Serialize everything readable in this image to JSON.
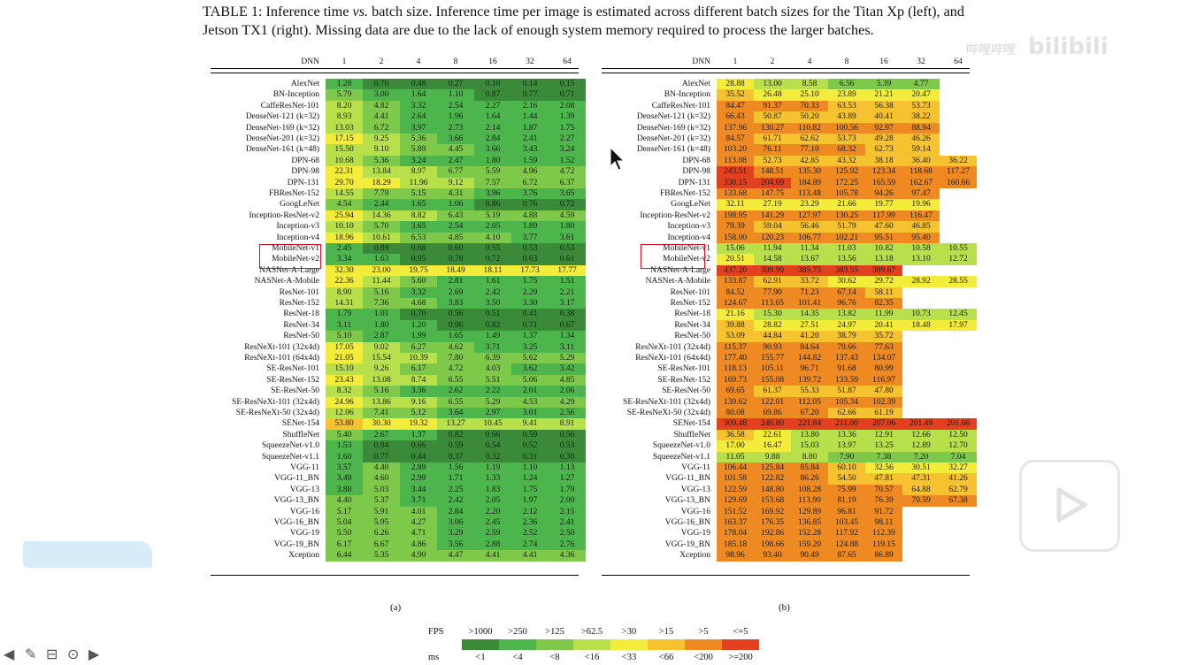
{
  "caption": {
    "prefix": "TABLE 1: Inference time ",
    "vs": "vs.",
    "rest": " batch size. Inference time per image is estimated across different batch sizes for the Titan Xp (left), and Jetson TX1 (right). Missing data are due to the lack of enough system memory required to process the larger batches."
  },
  "header": {
    "dnn": "DNN",
    "batches": [
      "1",
      "2",
      "4",
      "8",
      "16",
      "32",
      "64"
    ]
  },
  "titan": [
    [
      "AlexNet",
      [
        "1.28",
        "0.70",
        "0.48",
        "0.27",
        "0.18",
        "0.14",
        "0.15"
      ]
    ],
    [
      "BN-Inception",
      [
        "5.79",
        "3.00",
        "1.64",
        "1.10",
        "0.87",
        "0.77",
        "0.71"
      ]
    ],
    [
      "CaffeResNet-101",
      [
        "8.20",
        "4.82",
        "3.32",
        "2.54",
        "2.27",
        "2.16",
        "2.08"
      ]
    ],
    [
      "DenseNet-121 (k=32)",
      [
        "8.93",
        "4.41",
        "2.64",
        "1.96",
        "1.64",
        "1.44",
        "1.39"
      ]
    ],
    [
      "DenseNet-169 (k=32)",
      [
        "13.03",
        "6.72",
        "3.97",
        "2.73",
        "2.14",
        "1.87",
        "1.75"
      ]
    ],
    [
      "DenseNet-201 (k=32)",
      [
        "17.15",
        "9.25",
        "5.36",
        "3.66",
        "2.84",
        "2.41",
        "2.27"
      ]
    ],
    [
      "DenseNet-161 (k=48)",
      [
        "15.50",
        "9.10",
        "5.89",
        "4.45",
        "3.66",
        "3.43",
        "3.24"
      ]
    ],
    [
      "DPN-68",
      [
        "10.68",
        "5.36",
        "3.24",
        "2.47",
        "1.80",
        "1.59",
        "1.52"
      ]
    ],
    [
      "DPN-98",
      [
        "22.31",
        "13.84",
        "8.97",
        "6.77",
        "5.59",
        "4.96",
        "4.72"
      ]
    ],
    [
      "DPN-131",
      [
        "29.70",
        "18.29",
        "11.96",
        "9.12",
        "7.57",
        "6.72",
        "6.37"
      ]
    ],
    [
      "FBResNet-152",
      [
        "14.55",
        "7.79",
        "5.15",
        "4.31",
        "3.96",
        "3.76",
        "3.65"
      ]
    ],
    [
      "GoogLeNet",
      [
        "4.54",
        "2.44",
        "1.65",
        "1.06",
        "0.86",
        "0.76",
        "0.72"
      ]
    ],
    [
      "Inception-ResNet-v2",
      [
        "25.94",
        "14.36",
        "8.82",
        "6.43",
        "5.19",
        "4.88",
        "4.59"
      ]
    ],
    [
      "Inception-v3",
      [
        "10.10",
        "5.70",
        "3.65",
        "2.54",
        "2.05",
        "1.89",
        "1.80"
      ]
    ],
    [
      "Inception-v4",
      [
        "18.96",
        "10.61",
        "6.53",
        "4.85",
        "4.10",
        "3.77",
        "3.61"
      ]
    ],
    [
      "MobileNet-v1",
      [
        "2.45",
        "0.89",
        "0.68",
        "0.60",
        "0.55",
        "0.53",
        "0.53"
      ]
    ],
    [
      "MobileNet-v2",
      [
        "3.34",
        "1.63",
        "0.95",
        "0.78",
        "0.72",
        "0.63",
        "0.61"
      ]
    ],
    [
      "NASNet-A-Large",
      [
        "32.30",
        "23.00",
        "19.75",
        "18.49",
        "18.11",
        "17.73",
        "17.77"
      ]
    ],
    [
      "NASNet-A-Mobile",
      [
        "22.36",
        "11.44",
        "5.60",
        "2.81",
        "1.61",
        "1.75",
        "1.51"
      ]
    ],
    [
      "ResNet-101",
      [
        "8.90",
        "5.16",
        "3.32",
        "2.69",
        "2.42",
        "2.29",
        "2.21"
      ]
    ],
    [
      "ResNet-152",
      [
        "14.31",
        "7.36",
        "4.68",
        "3.83",
        "3.50",
        "3.30",
        "3.17"
      ]
    ],
    [
      "ResNet-18",
      [
        "1.79",
        "1.01",
        "0.70",
        "0.56",
        "0.51",
        "0.41",
        "0.38"
      ]
    ],
    [
      "ResNet-34",
      [
        "3.11",
        "1.80",
        "1.20",
        "0.96",
        "0.82",
        "0.71",
        "0.67"
      ]
    ],
    [
      "ResNet-50",
      [
        "5.10",
        "2.87",
        "1.99",
        "1.65",
        "1.49",
        "1.37",
        "1.34"
      ]
    ],
    [
      "ResNeXt-101 (32x4d)",
      [
        "17.05",
        "9.02",
        "6.27",
        "4.62",
        "3.71",
        "3.25",
        "3.11"
      ]
    ],
    [
      "ResNeXt-101 (64x4d)",
      [
        "21.05",
        "15.54",
        "10.39",
        "7.80",
        "6.39",
        "5.62",
        "5.29"
      ]
    ],
    [
      "SE-ResNet-101",
      [
        "15.10",
        "9.26",
        "6.17",
        "4.72",
        "4.03",
        "3.62",
        "3.42"
      ]
    ],
    [
      "SE-ResNet-152",
      [
        "23.43",
        "13.08",
        "8.74",
        "6.55",
        "5.51",
        "5.06",
        "4.85"
      ]
    ],
    [
      "SE-ResNet-50",
      [
        "8.32",
        "5.16",
        "3.36",
        "2.62",
        "2.22",
        "2.01",
        "2.06"
      ]
    ],
    [
      "SE-ResNeXt-101 (32x4d)",
      [
        "24.96",
        "13.86",
        "9.16",
        "6.55",
        "5.29",
        "4.53",
        "4.29"
      ]
    ],
    [
      "SE-ResNeXt-50 (32x4d)",
      [
        "12.06",
        "7.41",
        "5.12",
        "3.64",
        "2.97",
        "3.01",
        "2.56"
      ]
    ],
    [
      "SENet-154",
      [
        "53.80",
        "30.30",
        "19.32",
        "13.27",
        "10.45",
        "9.41",
        "8.91"
      ]
    ],
    [
      "ShuffleNet",
      [
        "5.40",
        "2.67",
        "1.37",
        "0.82",
        "0.66",
        "0.59",
        "0.56"
      ]
    ],
    [
      "SqueezeNet-v1.0",
      [
        "1.53",
        "0.84",
        "0.66",
        "0.59",
        "0.54",
        "0.52",
        "0.53"
      ]
    ],
    [
      "SqueezeNet-v1.1",
      [
        "1.60",
        "0.77",
        "0.44",
        "0.37",
        "0.32",
        "0.31",
        "0.30"
      ]
    ],
    [
      "VGG-11",
      [
        "3.57",
        "4.40",
        "2.89",
        "1.56",
        "1.19",
        "1.10",
        "1.13"
      ]
    ],
    [
      "VGG-11_BN",
      [
        "3.49",
        "4.60",
        "2.99",
        "1.71",
        "1.33",
        "1.24",
        "1.27"
      ]
    ],
    [
      "VGG-13",
      [
        "3.88",
        "5.03",
        "3.44",
        "2.25",
        "1.83",
        "1.75",
        "1.79"
      ]
    ],
    [
      "VGG-13_BN",
      [
        "4.40",
        "5.37",
        "3.71",
        "2.42",
        "2.05",
        "1.97",
        "2.00"
      ]
    ],
    [
      "VGG-16",
      [
        "5.17",
        "5.91",
        "4.01",
        "2.84",
        "2.20",
        "2.12",
        "2.15"
      ]
    ],
    [
      "VGG-16_BN",
      [
        "5.04",
        "5.95",
        "4.27",
        "3.06",
        "2.45",
        "2.36",
        "2.41"
      ]
    ],
    [
      "VGG-19",
      [
        "5.50",
        "6.26",
        "4.71",
        "3.29",
        "2.59",
        "2.52",
        "2.50"
      ]
    ],
    [
      "VGG-19_BN",
      [
        "6.17",
        "6.67",
        "4.86",
        "3.56",
        "2.88",
        "2.74",
        "2.76"
      ]
    ],
    [
      "Xception",
      [
        "6.44",
        "5.35",
        "4.90",
        "4.47",
        "4.41",
        "4.41",
        "4.36"
      ]
    ]
  ],
  "tx1": [
    [
      "AlexNet",
      [
        "28.88",
        "13.00",
        "8.58",
        "6.56",
        "5.39",
        "4.77",
        ""
      ]
    ],
    [
      "BN-Inception",
      [
        "35.52",
        "26.48",
        "25.10",
        "23.89",
        "21.21",
        "20.47",
        ""
      ]
    ],
    [
      "CaffeResNet-101",
      [
        "84.47",
        "91.37",
        "70.33",
        "63.53",
        "56.38",
        "53.73",
        ""
      ]
    ],
    [
      "DenseNet-121 (k=32)",
      [
        "66.43",
        "50.87",
        "50.20",
        "43.89",
        "40.41",
        "38.22",
        ""
      ]
    ],
    [
      "DenseNet-169 (k=32)",
      [
        "137.96",
        "130.27",
        "110.82",
        "100.56",
        "92.97",
        "88.94",
        ""
      ]
    ],
    [
      "DenseNet-201 (k=32)",
      [
        "84.57",
        "61.71",
        "62.62",
        "53.73",
        "49.28",
        "46.26",
        ""
      ]
    ],
    [
      "DenseNet-161 (k=48)",
      [
        "103.20",
        "76.11",
        "77.10",
        "68.32",
        "62.73",
        "59.14",
        ""
      ]
    ],
    [
      "DPN-68",
      [
        "113.08",
        "52.73",
        "42.85",
        "43.32",
        "38.18",
        "36.40",
        "36.22"
      ]
    ],
    [
      "DPN-98",
      [
        "243.51",
        "148.51",
        "135.30",
        "125.92",
        "123.34",
        "118.68",
        "117.27"
      ]
    ],
    [
      "DPN-131",
      [
        "330.15",
        "204.69",
        "184.89",
        "172.25",
        "165.59",
        "162.67",
        "160.66"
      ]
    ],
    [
      "FBResNet-152",
      [
        "133.68",
        "147.75",
        "113.48",
        "105.78",
        "94.26",
        "97.47",
        ""
      ]
    ],
    [
      "GoogLeNet",
      [
        "32.11",
        "27.19",
        "23.29",
        "21.66",
        "19.77",
        "19.96",
        ""
      ]
    ],
    [
      "Inception-ResNet-v2",
      [
        "198.95",
        "141.29",
        "127.97",
        "130.25",
        "117.99",
        "116.47",
        ""
      ]
    ],
    [
      "Inception-v3",
      [
        "79.39",
        "59.04",
        "56.46",
        "51.79",
        "47.60",
        "46.85",
        ""
      ]
    ],
    [
      "Inception-v4",
      [
        "158.00",
        "120.23",
        "106.77",
        "102.21",
        "95.51",
        "95.40",
        ""
      ]
    ],
    [
      "MobileNet-v1",
      [
        "15.06",
        "11.94",
        "11.34",
        "11.03",
        "10.82",
        "10.58",
        "10.55"
      ]
    ],
    [
      "MobileNet-v2",
      [
        "20.51",
        "14.58",
        "13.67",
        "13.56",
        "13.18",
        "13.10",
        "12.72"
      ]
    ],
    [
      "NASNet-A-Large",
      [
        "437.20",
        "399.99",
        "385.75",
        "383.55",
        "389.67",
        "",
        ""
      ]
    ],
    [
      "NASNet-A-Mobile",
      [
        "133.87",
        "62.91",
        "33.72",
        "30.62",
        "29.72",
        "28.92",
        "28.55"
      ]
    ],
    [
      "ResNet-101",
      [
        "84.52",
        "77.90",
        "71.23",
        "67.14",
        "58.11",
        "",
        ""
      ]
    ],
    [
      "ResNet-152",
      [
        "124.67",
        "113.65",
        "101.41",
        "96.76",
        "82.35",
        "",
        ""
      ]
    ],
    [
      "ResNet-18",
      [
        "21.16",
        "15.30",
        "14.35",
        "13.82",
        "11.99",
        "10.73",
        "12.45"
      ]
    ],
    [
      "ResNet-34",
      [
        "39.88",
        "28.82",
        "27.51",
        "24.97",
        "20.41",
        "18.48",
        "17.97"
      ]
    ],
    [
      "ResNet-50",
      [
        "53.09",
        "44.84",
        "41.20",
        "38.79",
        "35.72",
        "",
        ""
      ]
    ],
    [
      "ResNeXt-101 (32x4d)",
      [
        "115.37",
        "90.93",
        "84.64",
        "79.66",
        "77.63",
        "",
        ""
      ]
    ],
    [
      "ResNeXt-101 (64x4d)",
      [
        "177.40",
        "155.77",
        "144.82",
        "137.43",
        "134.07",
        "",
        ""
      ]
    ],
    [
      "SE-ResNet-101",
      [
        "118.13",
        "105.11",
        "96.71",
        "91.68",
        "80.99",
        "",
        ""
      ]
    ],
    [
      "SE-ResNet-152",
      [
        "169.73",
        "155.08",
        "139.72",
        "133.59",
        "116.97",
        "",
        ""
      ]
    ],
    [
      "SE-ResNet-50",
      [
        "69.65",
        "61.37",
        "55.33",
        "51.87",
        "47.80",
        "",
        ""
      ]
    ],
    [
      "SE-ResNeXt-101 (32x4d)",
      [
        "139.62",
        "122.01",
        "112.05",
        "105.34",
        "102.39",
        "",
        ""
      ]
    ],
    [
      "SE-ResNeXt-50 (32x4d)",
      [
        "80.08",
        "69.86",
        "67.20",
        "62.66",
        "61.19",
        "",
        ""
      ]
    ],
    [
      "SENet-154",
      [
        "309.48",
        "240.80",
        "221.84",
        "211.00",
        "207.06",
        "201.49",
        "201.66"
      ]
    ],
    [
      "ShuffleNet",
      [
        "36.58",
        "22.61",
        "13.80",
        "13.36",
        "12.91",
        "12.66",
        "12.50"
      ]
    ],
    [
      "SqueezeNet-v1.0",
      [
        "17.00",
        "16.47",
        "15.03",
        "13.97",
        "13.25",
        "12.89",
        "12.70"
      ]
    ],
    [
      "SqueezeNet-v1.1",
      [
        "11.05",
        "9.88",
        "8.80",
        "7.90",
        "7.38",
        "7.20",
        "7.04"
      ]
    ],
    [
      "VGG-11",
      [
        "106.44",
        "125.84",
        "85.84",
        "60.10",
        "32.56",
        "30.51",
        "32.27"
      ]
    ],
    [
      "VGG-11_BN",
      [
        "101.58",
        "122.82",
        "86.26",
        "54.50",
        "47.81",
        "47.31",
        "41.26"
      ]
    ],
    [
      "VGG-13",
      [
        "122.59",
        "148.80",
        "108.28",
        "75.99",
        "70.57",
        "64.88",
        "62.79"
      ]
    ],
    [
      "VGG-13_BN",
      [
        "129.69",
        "153.68",
        "113.90",
        "81.19",
        "76.39",
        "70.59",
        "67.38"
      ]
    ],
    [
      "VGG-16",
      [
        "151.52",
        "169.92",
        "129.89",
        "96.81",
        "91.72",
        "",
        ""
      ]
    ],
    [
      "VGG-16_BN",
      [
        "163.37",
        "176.35",
        "136.85",
        "103.45",
        "98.11",
        "",
        ""
      ]
    ],
    [
      "VGG-19",
      [
        "178.04",
        "192.86",
        "152.28",
        "117.92",
        "112.39",
        "",
        ""
      ]
    ],
    [
      "VGG-19_BN",
      [
        "185.18",
        "198.66",
        "159.20",
        "124.88",
        "119.15",
        "",
        ""
      ]
    ],
    [
      "Xception",
      [
        "98.96",
        "93.40",
        "90.49",
        "87.65",
        "86.89",
        "",
        ""
      ]
    ]
  ],
  "highlighted": [
    "MobileNet-v1",
    "MobileNet-v2"
  ],
  "sublabels": {
    "left": "(a)",
    "right": "(b)"
  },
  "legend": {
    "fps_label": "FPS",
    "ms_label": "ms",
    "fps": [
      ">1000",
      ">250",
      ">125",
      ">62.5",
      ">30",
      ">15",
      ">5",
      "<=5"
    ],
    "ms": [
      "<1",
      "<4",
      "<8",
      "<16",
      "<33",
      "<66",
      "<200",
      ">=200"
    ],
    "colors": [
      "#3a8a3a",
      "#4cb54c",
      "#7fc94a",
      "#b8e04a",
      "#f3ec3a",
      "#f7c230",
      "#ef8a22",
      "#e2401e"
    ]
  },
  "watermark": {
    "text": "哔哩哔哩",
    "logo": "bilibili"
  },
  "icons": [
    "arrow-left-icon",
    "pen-icon",
    "slides-icon",
    "more-icon",
    "arrow-right-icon",
    "play-icon",
    "mouse-cursor-icon"
  ]
}
